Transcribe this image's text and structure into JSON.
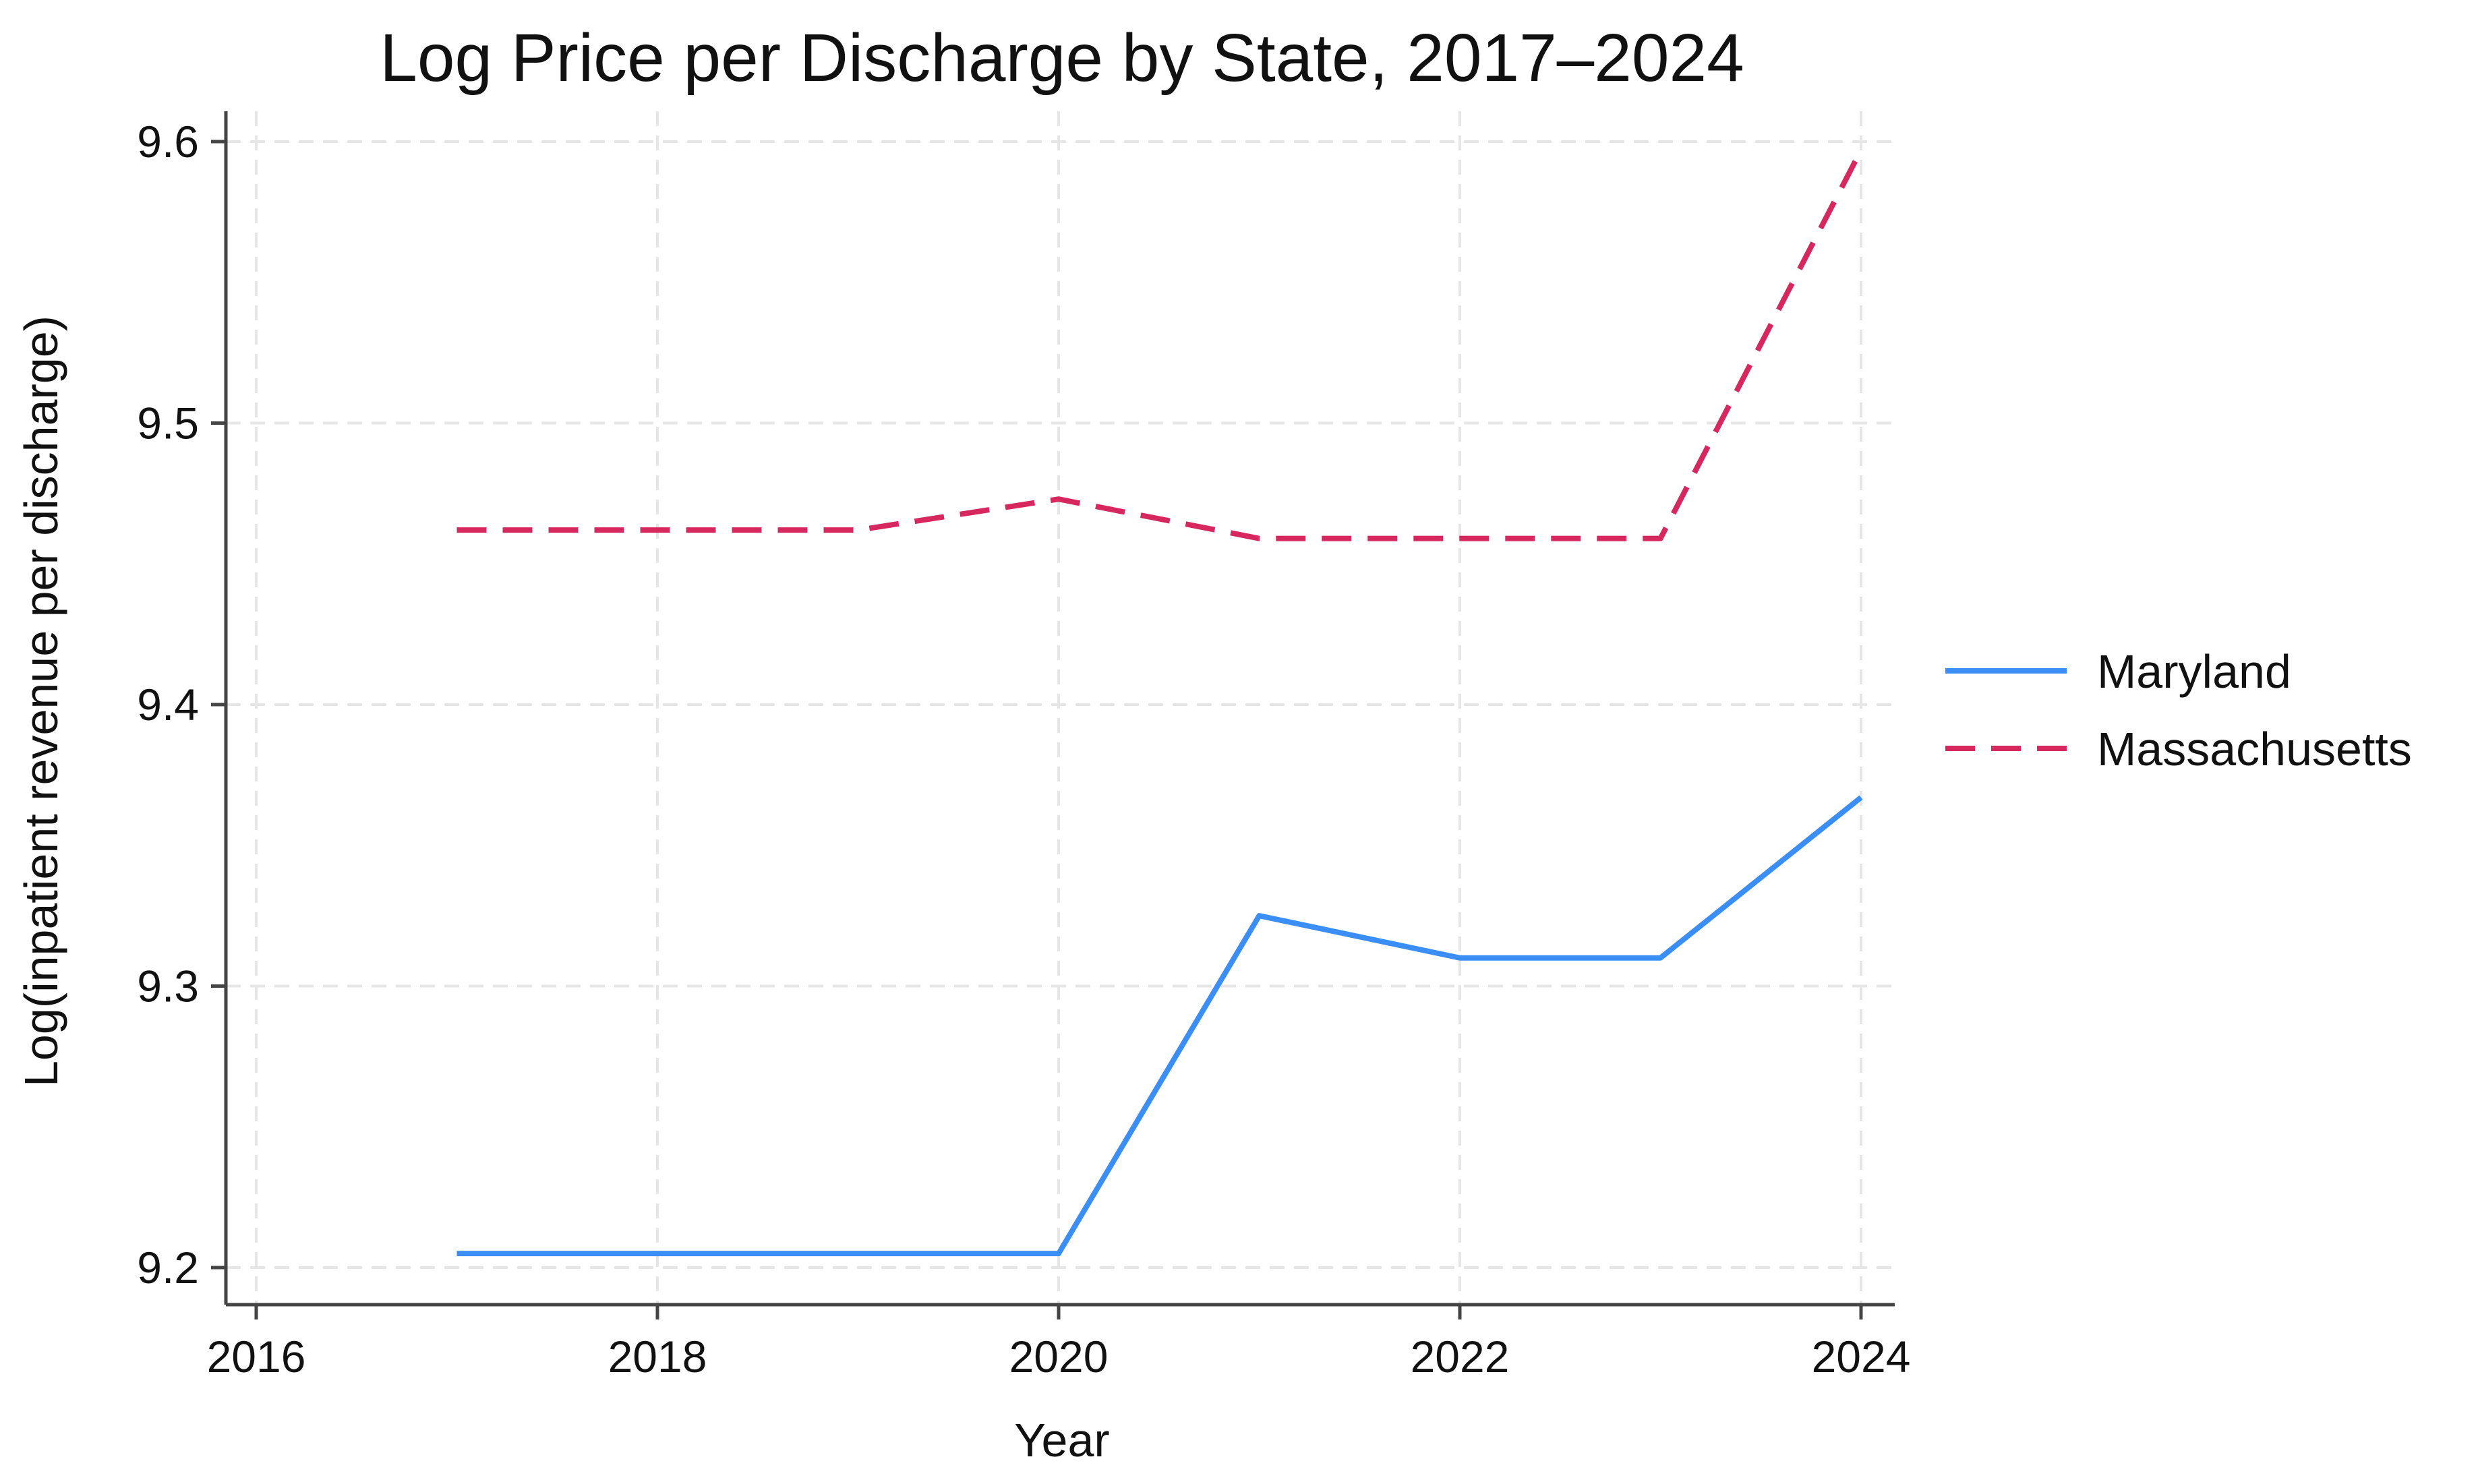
{
  "chart_data": {
    "type": "line",
    "title": "Log Price per Discharge by State, 2017–2024",
    "xlabel": "Year",
    "ylabel": "Log(inpatient revenue per discharge)",
    "x": [
      2017,
      2018,
      2019,
      2020,
      2021,
      2022,
      2023,
      2024
    ],
    "xlim": [
      2016,
      2024
    ],
    "ylim": [
      9.2,
      9.6
    ],
    "x_ticks": [
      "2016",
      "2018",
      "2020",
      "2022",
      "2024"
    ],
    "y_ticks": [
      "9.2",
      "9.3",
      "9.4",
      "9.5",
      "9.6"
    ],
    "grid": true,
    "legend_position": "right",
    "series": [
      {
        "name": "Maryland",
        "color": "#3a8ef6",
        "style": "solid",
        "values": [
          9.205,
          9.205,
          9.205,
          9.205,
          9.325,
          9.31,
          9.31,
          9.367
        ]
      },
      {
        "name": "Massachusetts",
        "color": "#d6285f",
        "style": "dashed",
        "values": [
          9.462,
          9.462,
          9.462,
          9.473,
          9.459,
          9.459,
          9.459,
          9.597
        ]
      }
    ]
  }
}
